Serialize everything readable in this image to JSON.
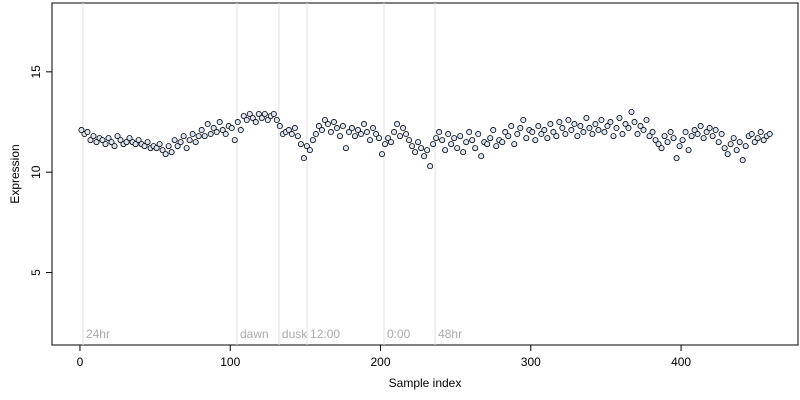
{
  "chart_data": {
    "type": "scatter",
    "x_label": "Sample index",
    "y_label": "Expression",
    "xlim": [
      -18.6,
      477.8
    ],
    "ylim": [
      1.39,
      18.43
    ],
    "xticks": [
      0,
      100,
      200,
      300,
      400
    ],
    "yticks": [
      5,
      10,
      15
    ],
    "annotations": [
      {
        "x": 2,
        "label": "24hr"
      },
      {
        "x": 104.5,
        "label": "dawn"
      },
      {
        "x": 132.4,
        "label": "dusk"
      },
      {
        "x": 151.1,
        "label": "12:00"
      },
      {
        "x": 202.3,
        "label": "0:00"
      },
      {
        "x": 236.3,
        "label": "48hr"
      }
    ],
    "color": "#dbe6f4",
    "edge_color": "#000000",
    "x": [
      1,
      3,
      5,
      7,
      9,
      11,
      13,
      15,
      17,
      19,
      21,
      23,
      25,
      27,
      29,
      31,
      33,
      35,
      37,
      39,
      41,
      43,
      45,
      47,
      49,
      51,
      53,
      55,
      57,
      59,
      61,
      63,
      65,
      67,
      69,
      71,
      73,
      75,
      77,
      79,
      81,
      83,
      85,
      87,
      89,
      91,
      93,
      95,
      97,
      99,
      101,
      103,
      105,
      107,
      109,
      111,
      113,
      115,
      117,
      119,
      121,
      123,
      125,
      127,
      129,
      131,
      133,
      135,
      137,
      139,
      141,
      143,
      145,
      147,
      149,
      151,
      153,
      155,
      157,
      159,
      161,
      163,
      165,
      167,
      169,
      171,
      173,
      175,
      177,
      179,
      181,
      183,
      185,
      187,
      189,
      191,
      193,
      195,
      197,
      199,
      201,
      203,
      205,
      207,
      209,
      211,
      213,
      215,
      217,
      219,
      221,
      223,
      225,
      227,
      229,
      231,
      233,
      235,
      237,
      239,
      241,
      243,
      245,
      247,
      249,
      251,
      253,
      255,
      257,
      259,
      261,
      263,
      265,
      267,
      269,
      271,
      273,
      275,
      277,
      279,
      281,
      283,
      285,
      287,
      289,
      291,
      293,
      295,
      297,
      299,
      301,
      303,
      305,
      307,
      309,
      311,
      313,
      315,
      317,
      319,
      321,
      323,
      325,
      327,
      329,
      331,
      333,
      335,
      337,
      339,
      341,
      343,
      345,
      347,
      349,
      351,
      353,
      355,
      357,
      359,
      361,
      363,
      365,
      367,
      369,
      371,
      373,
      375,
      377,
      379,
      381,
      383,
      385,
      387,
      389,
      391,
      393,
      395,
      397,
      399,
      401,
      403,
      405,
      407,
      409,
      411,
      413,
      415,
      417,
      419,
      421,
      423,
      425,
      427,
      429,
      431,
      433,
      435,
      437,
      439,
      441,
      443,
      445,
      447,
      449,
      451,
      453,
      455,
      457,
      459
    ],
    "values": [
      12.1,
      11.9,
      12.0,
      11.6,
      11.8,
      11.5,
      11.7,
      11.6,
      11.4,
      11.7,
      11.5,
      11.3,
      11.8,
      11.6,
      11.4,
      11.5,
      11.7,
      11.5,
      11.4,
      11.6,
      11.4,
      11.3,
      11.5,
      11.2,
      11.3,
      11.2,
      11.4,
      11.1,
      10.9,
      11.3,
      11.0,
      11.6,
      11.3,
      11.5,
      11.8,
      11.2,
      11.6,
      11.9,
      11.5,
      11.8,
      12.1,
      11.8,
      12.4,
      11.9,
      12.2,
      12.0,
      12.5,
      12.1,
      11.9,
      12.3,
      12.2,
      11.6,
      12.5,
      12.1,
      12.8,
      12.6,
      12.9,
      12.7,
      12.5,
      12.9,
      12.7,
      12.9,
      12.6,
      12.8,
      12.9,
      12.6,
      12.3,
      11.9,
      12.0,
      12.1,
      11.9,
      12.2,
      11.8,
      11.4,
      10.7,
      11.3,
      11.1,
      11.6,
      11.9,
      12.3,
      12.1,
      12.6,
      12.4,
      12.0,
      12.5,
      12.2,
      11.8,
      12.3,
      11.2,
      12.0,
      12.2,
      11.8,
      12.1,
      11.9,
      12.4,
      12.0,
      11.6,
      12.2,
      11.9,
      11.7,
      10.9,
      11.4,
      11.7,
      11.5,
      12.0,
      12.4,
      11.8,
      12.2,
      11.9,
      11.6,
      11.3,
      11.0,
      11.5,
      11.2,
      10.8,
      11.1,
      10.3,
      11.4,
      11.7,
      12.0,
      11.6,
      11.1,
      11.9,
      11.4,
      11.7,
      11.2,
      11.8,
      11.0,
      11.5,
      12.0,
      11.6,
      11.2,
      11.9,
      10.8,
      11.5,
      11.4,
      11.7,
      12.1,
      11.3,
      11.6,
      11.5,
      12.0,
      11.8,
      12.3,
      11.4,
      11.9,
      12.2,
      12.6,
      11.7,
      12.1,
      12.0,
      11.6,
      12.3,
      11.9,
      12.1,
      11.7,
      12.4,
      12.0,
      11.8,
      12.5,
      12.2,
      11.9,
      12.6,
      12.1,
      12.4,
      11.8,
      12.3,
      12.0,
      12.7,
      12.2,
      11.9,
      12.4,
      12.1,
      12.6,
      12.0,
      12.3,
      12.5,
      11.8,
      12.2,
      12.7,
      11.9,
      12.4,
      12.2,
      13.0,
      12.5,
      11.9,
      12.3,
      12.1,
      12.6,
      11.8,
      12.0,
      11.6,
      11.4,
      11.2,
      11.8,
      11.5,
      12.0,
      11.7,
      10.7,
      11.3,
      11.6,
      12.0,
      11.1,
      11.8,
      12.1,
      11.9,
      12.3,
      11.7,
      12.0,
      12.2,
      11.8,
      12.1,
      11.5,
      11.9,
      11.2,
      10.9,
      11.4,
      11.7,
      11.1,
      11.5,
      10.6,
      11.3,
      11.8,
      11.9,
      11.5,
      11.7,
      12.0,
      11.6,
      11.8,
      11.9
    ]
  }
}
